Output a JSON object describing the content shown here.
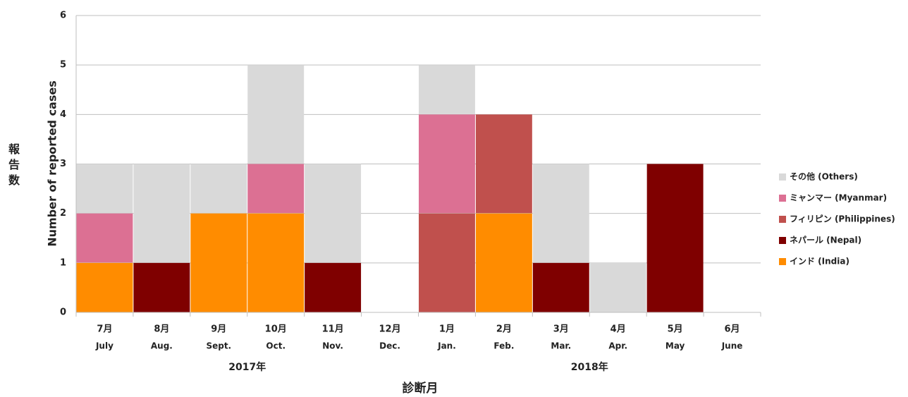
{
  "chart_data": {
    "type": "stacked_bar",
    "y_label_ja": "報告数",
    "y_label": "Number of reported cases",
    "x_label": "診断月",
    "categories": [
      "7月",
      "8月",
      "9月",
      "10月",
      "11月",
      "12月",
      "1月",
      "2月",
      "3月",
      "4月",
      "5月",
      "6月"
    ],
    "categories_en": [
      "July",
      "Aug.",
      "Sept.",
      "Oct.",
      "Nov.",
      "Dec.",
      "Jan.",
      "Feb.",
      "Mar.",
      "Apr.",
      "May",
      "June"
    ],
    "year_labels": [
      "2017年",
      "2018年"
    ],
    "series": [
      {
        "name": "その他 (Others)",
        "color": "#d9d9d9",
        "values": [
          1,
          2,
          1,
          2,
          2,
          0,
          1,
          0,
          2,
          1,
          0,
          0
        ]
      },
      {
        "name": "ミャンマー (Myanmar)",
        "color": "#dc7093",
        "values": [
          1,
          0,
          0,
          1,
          0,
          0,
          2,
          0,
          0,
          0,
          0,
          0
        ]
      },
      {
        "name": "フィリピン (Philippines)",
        "color": "#c0504d",
        "values": [
          0,
          0,
          0,
          0,
          0,
          0,
          2,
          2,
          0,
          0,
          0,
          0
        ]
      },
      {
        "name": "ネパール (Nepal)",
        "color": "#7f0000",
        "values": [
          0,
          1,
          0,
          0,
          1,
          0,
          0,
          0,
          1,
          0,
          3,
          0
        ]
      },
      {
        "name": "インド (India)",
        "color": "#ff8c00",
        "values": [
          1,
          0,
          2,
          2,
          0,
          0,
          0,
          2,
          0,
          0,
          0,
          0
        ]
      }
    ],
    "ylim": [
      0,
      6
    ],
    "yticks": [
      0,
      1,
      2,
      3,
      4,
      5,
      6
    ],
    "grid": true,
    "legend": "right"
  }
}
